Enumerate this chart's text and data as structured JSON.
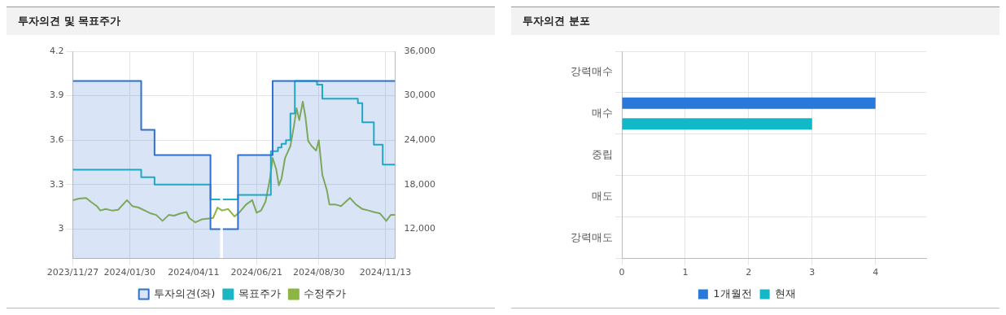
{
  "chart_data": [
    {
      "type": "line",
      "title": "투자의견 및 목표주가",
      "ylim": [
        2.8,
        4.2
      ],
      "yticks": [
        3,
        3.3,
        3.6,
        3.9,
        4.2
      ],
      "y2lim": [
        8000,
        36000
      ],
      "y2ticks": [
        {
          "value": 12000,
          "label": "12,000"
        },
        {
          "value": 18000,
          "label": "18,000"
        },
        {
          "value": 24000,
          "label": "24,000"
        },
        {
          "value": 30000,
          "label": "30,000"
        },
        {
          "value": 36000,
          "label": "36,000"
        }
      ],
      "xlim": [
        "2023-11-27",
        "2024-11-24"
      ],
      "xticks": [
        {
          "value": "2023-11-27",
          "label": "2023/11/27"
        },
        {
          "value": "2024-01-30",
          "label": "2024/01/30"
        },
        {
          "value": "2024-04-11",
          "label": "2024/04/11"
        },
        {
          "value": "2024-06-21",
          "label": "2024/06/21"
        },
        {
          "value": "2024-08-30",
          "label": "2024/08/30"
        },
        {
          "value": "2024-11-13",
          "label": "2024/11/13"
        }
      ],
      "grid": true,
      "legend": "bottom",
      "series": [
        {
          "name": "투자의견(좌)",
          "type": "area",
          "color": "#2f6fcf",
          "x": [
            "2023-11-27",
            "2024-02-12",
            "2024-02-12",
            "2024-02-27",
            "2024-02-27",
            "2024-04-30",
            "2024-04-30",
            "2024-05-11",
            "2024-05-12",
            "2024-05-14",
            "2024-05-31",
            "2024-05-31",
            "2024-07-09",
            "2024-07-09",
            "2024-11-24"
          ],
          "values": [
            4,
            4,
            3.67,
            3.67,
            3.5,
            3.5,
            3,
            3,
            null,
            3,
            3,
            3.5,
            3.5,
            4,
            4
          ]
        },
        {
          "name": "목표주가",
          "type": "step",
          "axis": "y2",
          "color": "#1cb5c4",
          "x": [
            "2023-11-27",
            "2024-02-12",
            "2024-02-12",
            "2024-02-27",
            "2024-02-27",
            "2024-04-30",
            "2024-04-30",
            "2024-05-11",
            "2024-05-12",
            "2024-05-14",
            "2024-05-31",
            "2024-05-31",
            "2024-07-07",
            "2024-07-07",
            "2024-07-15",
            "2024-07-15",
            "2024-07-19",
            "2024-07-19",
            "2024-07-24",
            "2024-07-24",
            "2024-07-29",
            "2024-07-29",
            "2024-08-03",
            "2024-08-03",
            "2024-08-28",
            "2024-08-28",
            "2024-09-03",
            "2024-09-03",
            "2024-10-13",
            "2024-10-13",
            "2024-10-18",
            "2024-10-18",
            "2024-10-31",
            "2024-10-31",
            "2024-11-10",
            "2024-11-10",
            "2024-11-24"
          ],
          "values": [
            20000,
            20000,
            19000,
            19000,
            18000,
            18000,
            16000,
            16000,
            null,
            16000,
            16000,
            16600,
            16600,
            22500,
            22500,
            23000,
            23000,
            23500,
            23500,
            24000,
            24000,
            27600,
            27600,
            32000,
            32000,
            31500,
            31500,
            29600,
            29600,
            29000,
            29000,
            26400,
            26400,
            23400,
            23400,
            20700,
            20700
          ]
        },
        {
          "name": "수정주가",
          "type": "line",
          "axis": "y2",
          "color": "#8db543",
          "x": [
            "2023-11-27",
            "2023-12-04",
            "2023-12-12",
            "2023-12-17",
            "2023-12-24",
            "2023-12-28",
            "2024-01-03",
            "2024-01-10",
            "2024-01-17",
            "2024-01-27",
            "2024-02-02",
            "2024-02-09",
            "2024-02-16",
            "2024-02-23",
            "2024-02-29",
            "2024-03-07",
            "2024-03-14",
            "2024-03-20",
            "2024-03-27",
            "2024-04-03",
            "2024-04-06",
            "2024-04-13",
            "2024-04-20",
            "2024-04-26",
            "2024-05-03",
            "2024-05-08",
            "2024-05-13",
            "2024-05-20",
            "2024-05-27",
            "2024-06-02",
            "2024-06-09",
            "2024-06-16",
            "2024-06-21",
            "2024-06-26",
            "2024-07-01",
            "2024-07-06",
            "2024-07-09",
            "2024-07-13",
            "2024-07-16",
            "2024-07-19",
            "2024-07-23",
            "2024-07-29",
            "2024-08-02",
            "2024-08-05",
            "2024-08-08",
            "2024-08-12",
            "2024-08-15",
            "2024-08-18",
            "2024-08-22",
            "2024-08-27",
            "2024-08-30",
            "2024-09-03",
            "2024-09-08",
            "2024-09-11",
            "2024-09-18",
            "2024-09-24",
            "2024-10-04",
            "2024-10-11",
            "2024-10-18",
            "2024-10-25",
            "2024-10-31",
            "2024-11-07",
            "2024-11-14",
            "2024-11-19",
            "2024-11-24"
          ],
          "values": [
            15900,
            16100,
            16200,
            15700,
            15100,
            14500,
            14700,
            14500,
            14600,
            15900,
            15100,
            14900,
            14500,
            14100,
            13900,
            13100,
            13900,
            13800,
            14100,
            14300,
            13500,
            12900,
            13300,
            13400,
            13500,
            14900,
            14500,
            14700,
            13700,
            14300,
            15300,
            15900,
            14200,
            14500,
            15700,
            18800,
            21600,
            20100,
            17900,
            18800,
            21600,
            23200,
            25900,
            28300,
            26700,
            29200,
            27100,
            23900,
            23200,
            22600,
            24000,
            19300,
            17300,
            15300,
            15300,
            15100,
            16200,
            15300,
            14700,
            14500,
            14300,
            14100,
            13100,
            13900,
            13900
          ]
        }
      ]
    },
    {
      "type": "bar",
      "title": "투자의견 분포",
      "orientation": "horizontal",
      "categories": [
        "강력매수",
        "매수",
        "중립",
        "매도",
        "강력매도"
      ],
      "xlim": [
        0,
        4.8
      ],
      "xticks": [
        0,
        1,
        2,
        3,
        4
      ],
      "grid": true,
      "legend": "bottom",
      "series": [
        {
          "name": "1개월전",
          "color": "#2a78d9",
          "values": [
            0,
            4,
            0,
            0,
            0
          ]
        },
        {
          "name": "현재",
          "color": "#12b8c8",
          "values": [
            0,
            3,
            0,
            0,
            0
          ]
        }
      ]
    }
  ]
}
